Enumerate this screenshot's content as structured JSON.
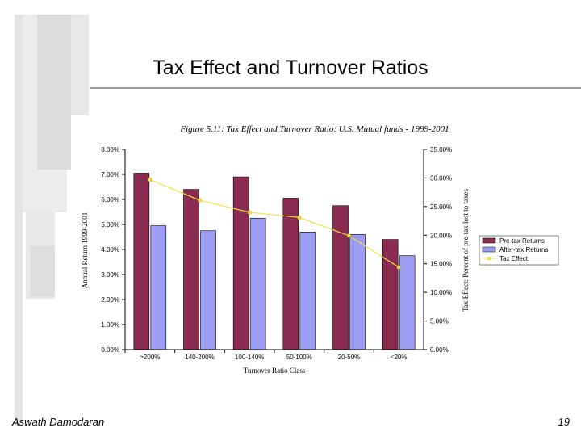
{
  "slide": {
    "title": "Tax Effect and Turnover Ratios",
    "footer_left": "Aswath Damodaran",
    "page_number": "19"
  },
  "colors": {
    "pre_tax": "#8B2B50",
    "after_tax": "#9C9CF2",
    "tax_effect": "#F0E04A",
    "deco": "#e4e4e4"
  },
  "chart_data": {
    "type": "bar",
    "title": "Figure 5.11: Tax Effect and Turnover Ratio: U.S. Mutual funds - 1999-2001",
    "xlabel": "Turnover Ratio Class",
    "ylabel": "Annual Return 1999-2001",
    "y2label": "Tax Effect: Percent of pre-tax lost to taxes",
    "categories": [
      ">200%",
      "140-200%",
      "100-140%",
      "50-100%",
      "20-50%",
      "<20%"
    ],
    "ylim": [
      0,
      8
    ],
    "y_ticks": [
      "8.00%",
      "7.00%",
      "6.00%",
      "5.00%",
      "4.00%",
      "3.00%",
      "2.00%",
      "1.00%",
      "0.00%"
    ],
    "y2lim": [
      0,
      35
    ],
    "y2_ticks": [
      "35.00%",
      "30.00%",
      "25.00%",
      "20.00%",
      "15.00%",
      "10.00%",
      "5.00%",
      "0.00%"
    ],
    "series": [
      {
        "name": "Pre-tax Returns",
        "type": "bar",
        "axis": "left",
        "values": [
          7.05,
          6.4,
          6.9,
          6.05,
          5.75,
          4.4
        ]
      },
      {
        "name": "After-tax Returns",
        "type": "bar",
        "axis": "left",
        "values": [
          4.95,
          4.75,
          5.25,
          4.7,
          4.6,
          3.75
        ]
      },
      {
        "name": "Tax Effect",
        "type": "line",
        "axis": "right",
        "values": [
          29.7,
          26.1,
          24.0,
          23.1,
          19.9,
          14.4
        ]
      }
    ],
    "legend_position": "right",
    "grid": false
  }
}
